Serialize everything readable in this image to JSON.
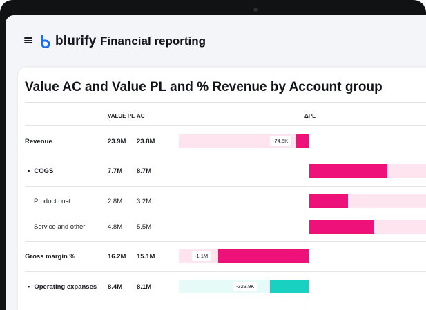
{
  "app": {
    "brand": "blurify",
    "title": "Financial reporting"
  },
  "report": {
    "title": "Value AC and Value PL and % Revenue by Account group",
    "columns": {
      "pl": "VALUE PL",
      "ac": "AC",
      "delta": "ΔPL"
    }
  },
  "colors": {
    "negative_fill": "#ee1179",
    "negative_bg": "#fde4ee",
    "positive_fill": "#19d1c1",
    "positive_bg": "#e6fbf8"
  },
  "rows": [
    {
      "label": "Revenue",
      "bullet": "",
      "pl": "23.9M",
      "ac": "23.8M",
      "bold": true,
      "delta_label": "-74.5K"
    },
    {
      "label": "COGS",
      "bullet": "•",
      "pl": "7.7M",
      "ac": "8.7M",
      "bold": true,
      "delta_label": ""
    },
    {
      "label": "Product cost",
      "bullet": "",
      "pl": "2.8M",
      "ac": "3.2M",
      "bold": false,
      "delta_label": ""
    },
    {
      "label": "Service and other",
      "bullet": "",
      "pl": "4.8M",
      "ac": "5,5M",
      "bold": false,
      "delta_label": ""
    },
    {
      "label": "Gross margin %",
      "bullet": "",
      "pl": "16.2M",
      "ac": "15.1M",
      "bold": true,
      "delta_label": "-1.1M"
    },
    {
      "label": "Operating expanses",
      "bullet": "•",
      "pl": "8.4M",
      "ac": "8.1M",
      "bold": true,
      "delta_label": "-323.9K"
    }
  ]
}
